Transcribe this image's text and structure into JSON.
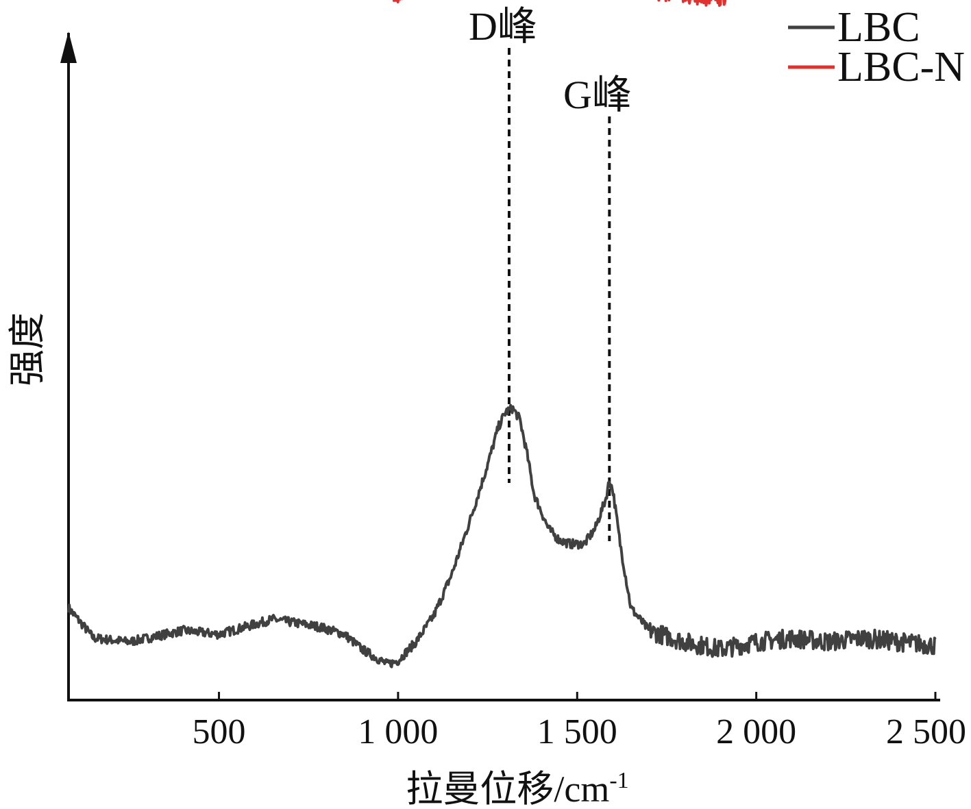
{
  "chart_data": {
    "type": "line",
    "title": "",
    "xlabel": "拉曼位移/cm",
    "xlabel_superscript": "-1",
    "ylabel": "强度",
    "xlim": [
      80,
      2500
    ],
    "x_ticks": [
      {
        "value": 500,
        "label": "500"
      },
      {
        "value": 1000,
        "label": "1 000"
      },
      {
        "value": 1500,
        "label": "1 500"
      },
      {
        "value": 2000,
        "label": "2 000"
      },
      {
        "value": 2500,
        "label": "2 500"
      }
    ],
    "y_ticks_shown": false,
    "grid": false,
    "legend_position": "top-right",
    "series": [
      {
        "name": "LBC",
        "color": "#404040",
        "x": [
          80,
          150,
          250,
          400,
          500,
          650,
          780,
          850,
          900,
          970,
          1000,
          1050,
          1100,
          1150,
          1200,
          1250,
          1280,
          1300,
          1320,
          1340,
          1360,
          1380,
          1420,
          1450,
          1480,
          1520,
          1550,
          1580,
          1590,
          1600,
          1620,
          1650,
          1700,
          1800,
          1900,
          2000,
          2100,
          2200,
          2300,
          2400,
          2500
        ],
        "y": [
          0.35,
          0.27,
          0.26,
          0.29,
          0.28,
          0.32,
          0.3,
          0.28,
          0.24,
          0.2,
          0.21,
          0.26,
          0.33,
          0.44,
          0.58,
          0.73,
          0.83,
          0.87,
          0.88,
          0.85,
          0.76,
          0.65,
          0.56,
          0.53,
          0.52,
          0.52,
          0.56,
          0.64,
          0.69,
          0.66,
          0.52,
          0.35,
          0.29,
          0.26,
          0.24,
          0.26,
          0.27,
          0.26,
          0.27,
          0.26,
          0.25
        ],
        "noise": 0.012,
        "noise_high": 0.025
      },
      {
        "name": "LBC-N",
        "color": "#e03030",
        "x": [
          80,
          150,
          250,
          400,
          500,
          650,
          780,
          850,
          900,
          970,
          1000,
          1050,
          1100,
          1150,
          1200,
          1250,
          1280,
          1300,
          1320,
          1340,
          1360,
          1380,
          1420,
          1450,
          1480,
          1520,
          1550,
          1580,
          1590,
          1600,
          1620,
          1650,
          1700,
          1800,
          1900,
          2000,
          2100,
          2200,
          2300,
          2400,
          2500
        ],
        "y": [
          2.1,
          1.99,
          1.98,
          2.0,
          2.01,
          2.03,
          2.05,
          2.04,
          2.0,
          1.98,
          1.97,
          1.99,
          2.05,
          2.2,
          2.36,
          2.52,
          2.62,
          2.65,
          2.63,
          2.55,
          2.4,
          2.25,
          2.15,
          2.12,
          2.11,
          2.13,
          2.22,
          2.35,
          2.38,
          2.32,
          2.18,
          2.02,
          1.99,
          1.98,
          1.97,
          2.01,
          2.03,
          2.04,
          2.03,
          2.02,
          2.01
        ],
        "noise": 0.012,
        "noise_high": 0.025
      }
    ],
    "annotations": [
      {
        "label": "D峰",
        "x": 1310
      },
      {
        "label": "G峰",
        "x": 1590
      }
    ]
  }
}
